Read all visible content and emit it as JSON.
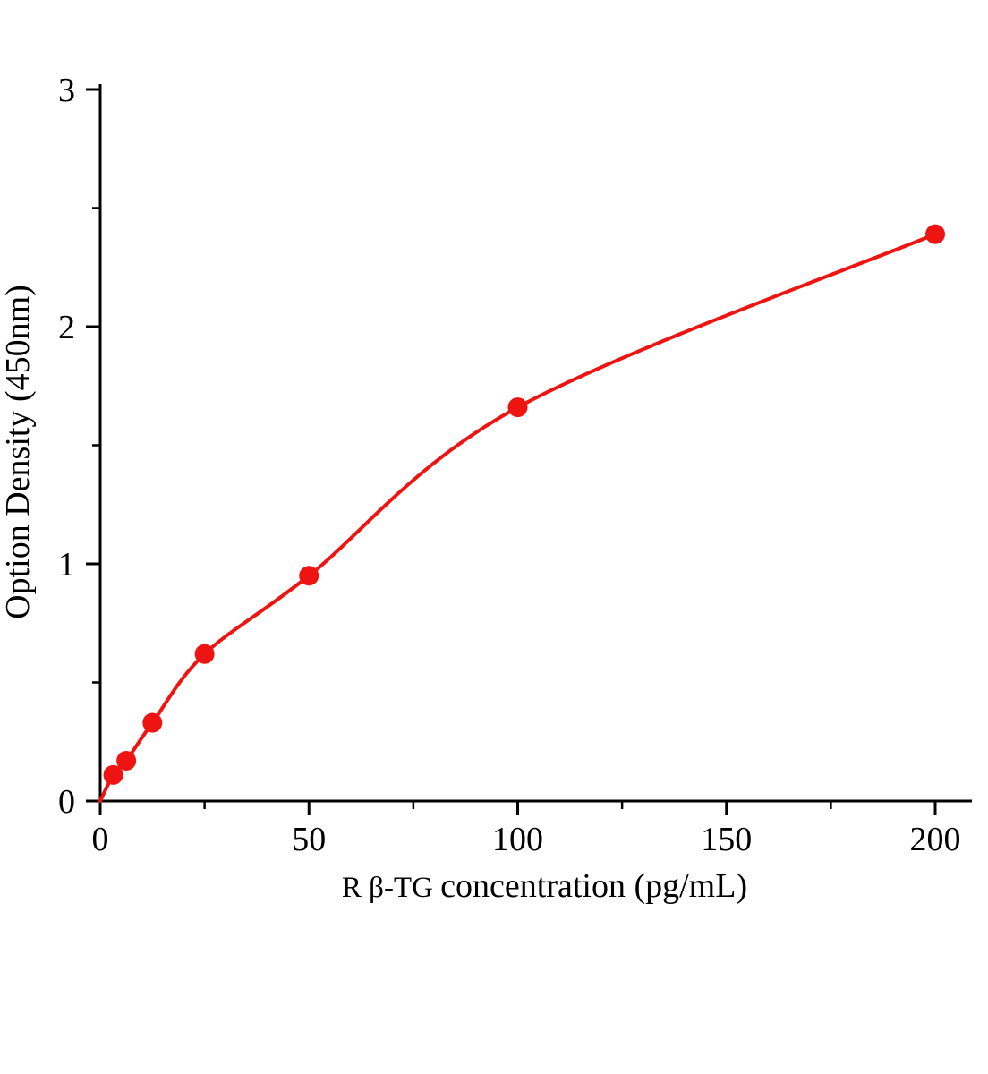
{
  "chart_data": {
    "type": "scatter",
    "title": "",
    "xlabel": "R β-TG concentration（pg/mL）",
    "ylabel": "Option Density（450nm）",
    "series": [
      {
        "name": "standard-curve",
        "points": [
          {
            "x": 3.125,
            "y": 0.11
          },
          {
            "x": 6.25,
            "y": 0.17
          },
          {
            "x": 12.5,
            "y": 0.33
          },
          {
            "x": 25,
            "y": 0.62
          },
          {
            "x": 50,
            "y": 0.95
          },
          {
            "x": 100,
            "y": 1.66
          },
          {
            "x": 200,
            "y": 2.39
          }
        ]
      }
    ],
    "curve_origin": {
      "x": 0,
      "y": 0
    },
    "xlim": [
      0,
      200
    ],
    "ylim": [
      0,
      3
    ],
    "x_major_ticks": [
      0,
      50,
      100,
      150,
      200
    ],
    "x_minor_ticks": [
      25,
      75,
      125,
      175
    ],
    "y_major_ticks": [
      0,
      1,
      2,
      3
    ],
    "y_minor_ticks": [
      0.5,
      1.5,
      2.5
    ],
    "grid": false,
    "legend_position": "none",
    "marker_color": "#ee1411",
    "curve_color": "#ee1411",
    "axis_color": "#000000"
  }
}
